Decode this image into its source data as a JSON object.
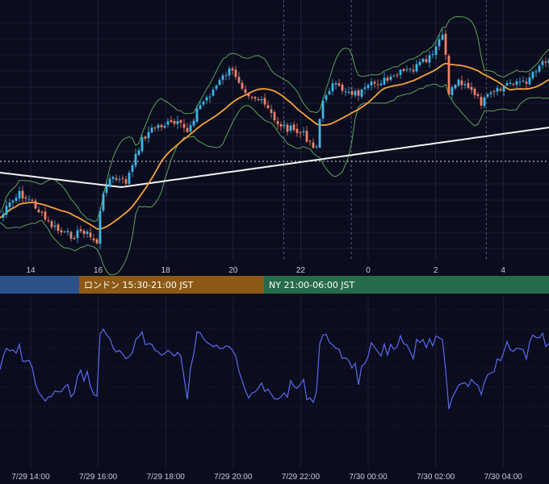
{
  "chart_data": [
    {
      "type": "candlestick",
      "panel": "price",
      "x_hours_since_7_29_13": [
        0,
        16.8
      ],
      "candles_description": "5-minute style candles; rising candles cyan, falling candles coral",
      "price_path": [
        [
          0.0,
          270
        ],
        [
          0.6,
          253
        ],
        [
          1.2,
          240
        ],
        [
          2.0,
          252
        ],
        [
          2.6,
          270
        ],
        [
          3.2,
          282
        ],
        [
          3.8,
          290
        ],
        [
          4.4,
          292
        ],
        [
          5.0,
          285
        ],
        [
          5.4,
          295
        ],
        [
          5.8,
          300
        ],
        [
          6.0,
          260
        ],
        [
          6.4,
          222
        ],
        [
          6.9,
          222
        ],
        [
          7.5,
          226
        ],
        [
          8.0,
          202
        ],
        [
          8.4,
          175
        ],
        [
          8.8,
          165
        ],
        [
          9.4,
          156
        ],
        [
          10.0,
          154
        ],
        [
          10.6,
          154
        ],
        [
          11.2,
          162
        ],
        [
          11.8,
          135
        ],
        [
          12.4,
          120
        ],
        [
          13.0,
          105
        ],
        [
          13.6,
          88
        ],
        [
          14.0,
          90
        ],
        [
          14.4,
          103
        ],
        [
          14.8,
          115
        ],
        [
          15.4,
          123
        ],
        [
          16.0,
          135
        ],
        [
          16.4,
          150
        ],
        [
          17.0,
          157
        ],
        [
          17.6,
          163
        ],
        [
          18.2,
          167
        ],
        [
          18.6,
          178
        ],
        [
          18.9,
          182
        ],
        [
          19.1,
          148
        ],
        [
          19.4,
          118
        ],
        [
          19.8,
          105
        ],
        [
          20.3,
          110
        ],
        [
          20.8,
          112
        ],
        [
          21.3,
          116
        ],
        [
          21.8,
          113
        ],
        [
          22.3,
          104
        ],
        [
          22.8,
          100
        ],
        [
          23.3,
          100
        ],
        [
          23.6,
          95
        ],
        [
          24.0,
          90
        ],
        [
          24.6,
          87
        ],
        [
          25.1,
          80
        ],
        [
          25.6,
          74
        ],
        [
          26.0,
          65
        ],
        [
          26.2,
          50
        ],
        [
          26.5,
          42
        ],
        [
          26.8,
          115
        ],
        [
          27.3,
          100
        ],
        [
          27.8,
          102
        ],
        [
          28.3,
          118
        ],
        [
          28.8,
          128
        ],
        [
          29.3,
          118
        ],
        [
          29.8,
          113
        ],
        [
          30.3,
          104
        ],
        [
          30.8,
          100
        ],
        [
          31.3,
          104
        ],
        [
          31.8,
          90
        ],
        [
          32.3,
          78
        ],
        [
          32.8,
          70
        ]
      ],
      "horizontal_reference_line": "dotted white line at mid-level",
      "series": [
        {
          "name": "",
          "color": "#f5a23a",
          "description": "short moving average"
        },
        {
          "name": "",
          "color": "#f2f2f2",
          "description": "long moving average"
        },
        {
          "name": "",
          "color": "#5aa35a",
          "description": "Bollinger upper band"
        },
        {
          "name": "",
          "color": "#5aa35a",
          "description": "Bollinger lower band"
        }
      ],
      "x_tick_labels": [
        "14",
        "16",
        "18",
        "20",
        "22",
        "0",
        "2",
        "4"
      ],
      "grid": true
    },
    {
      "type": "line",
      "panel": "oscillator",
      "color": "#5a6af0",
      "x_tick_labels": [
        "7/29 14:00",
        "7/29 16:00",
        "7/29 18:00",
        "7/29 20:00",
        "7/29 22:00",
        "7/30 00:00",
        "7/30 02:00",
        "7/30 04:00"
      ],
      "grid": true
    }
  ],
  "sessions": [
    {
      "label": "",
      "color": "#2b5288"
    },
    {
      "label": "ロンドン 15:30-21:00 JST",
      "color": "#8c5a14"
    },
    {
      "label": "NY 21:00-06:00 JST",
      "color": "#266b4a"
    }
  ],
  "colors": {
    "background": "#0b0c1e",
    "grid": "#2a2d45",
    "candle_up": "#3fb8e8",
    "candle_down": "#f0826a",
    "tick_text": "#c8ccd8"
  }
}
